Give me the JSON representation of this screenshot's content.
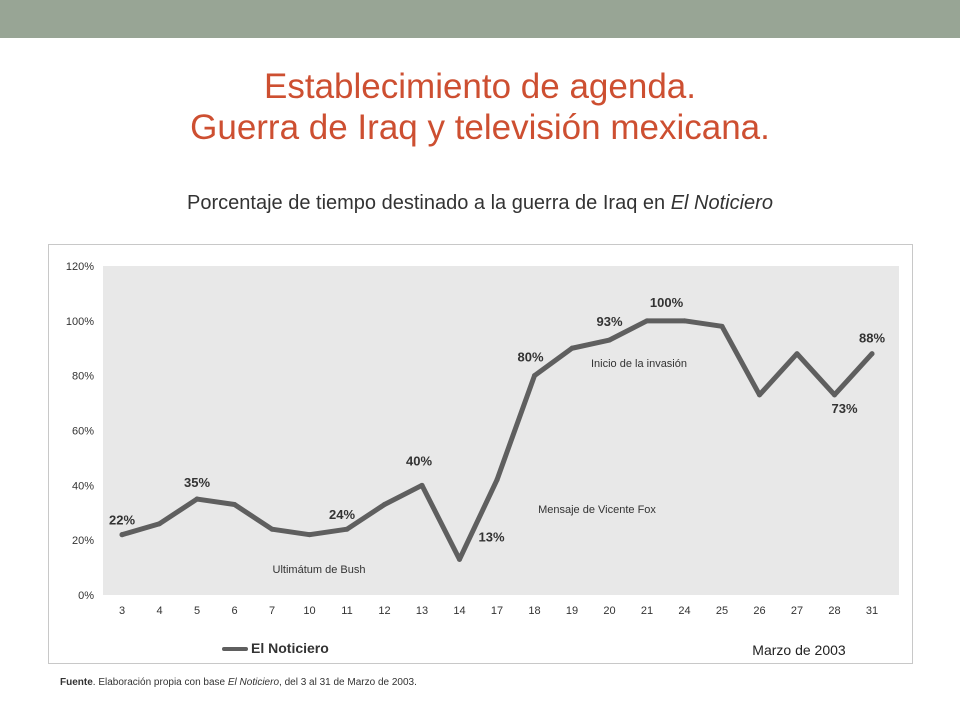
{
  "header": {
    "title_line1": "Establecimiento de agenda.",
    "title_line2": "Guerra de Iraq y televisión mexicana."
  },
  "subtitle": {
    "text": "Porcentaje de tiempo destinado a la guerra de Iraq en ",
    "emphasis": "El Noticiero"
  },
  "footer": {
    "source_label": "Fuente",
    "source_text_before": ". Elaboración propia con base ",
    "source_emphasis": "El Noticiero",
    "source_text_after": ", del 3 al 31 de Marzo de 2003."
  },
  "colors": {
    "title": "#cd4f31",
    "top_bar": "#98a595",
    "line": "#5f5f5f",
    "plot_background": "#e8e8e8"
  },
  "chart_data": {
    "type": "line",
    "title": "",
    "xlabel": "Marzo de 2003",
    "ylabel": "",
    "ylim": [
      0,
      120
    ],
    "yticks": [
      "0%",
      "20%",
      "40%",
      "60%",
      "80%",
      "100%",
      "120%"
    ],
    "ytick_values": [
      0,
      20,
      40,
      60,
      80,
      100,
      120
    ],
    "categories": [
      "3",
      "4",
      "5",
      "6",
      "7",
      "10",
      "11",
      "12",
      "13",
      "14",
      "17",
      "18",
      "19",
      "20",
      "21",
      "24",
      "25",
      "26",
      "27",
      "28",
      "31"
    ],
    "series": [
      {
        "name": "El Noticiero",
        "values": [
          22,
          26,
          35,
          33,
          24,
          22,
          24,
          33,
          40,
          13,
          42,
          80,
          90,
          93,
          100,
          100,
          98,
          73,
          88,
          73,
          88
        ]
      }
    ],
    "data_labels": [
      {
        "index": 0,
        "text": "22%"
      },
      {
        "index": 2,
        "text": "35%"
      },
      {
        "index": 6,
        "text": "24%"
      },
      {
        "index": 8,
        "text": "40%"
      },
      {
        "index": 9,
        "text": "13%"
      },
      {
        "index": 11,
        "text": "80%"
      },
      {
        "index": 13,
        "text": "93%"
      },
      {
        "index": 15,
        "text": "100%"
      },
      {
        "index": 19,
        "text": "73%"
      },
      {
        "index": 20,
        "text": "88%"
      }
    ],
    "annotations": [
      {
        "text": "Ultimátum de Bush",
        "near": "6"
      },
      {
        "text": "Mensaje de Vicente Fox",
        "near": "18"
      },
      {
        "text": "Inicio de la invasión",
        "near": "20"
      }
    ],
    "legend": {
      "position": "bottom-left"
    },
    "grid": false
  }
}
